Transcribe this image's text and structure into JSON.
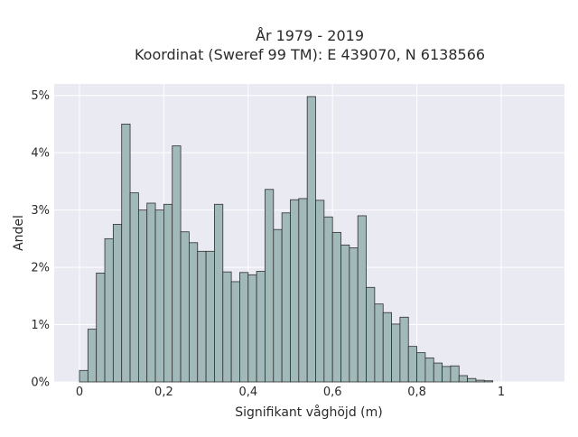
{
  "chart_data": {
    "type": "bar",
    "title_line1": "År 1979 - 2019",
    "title_line2": "Koordinat (Sweref 99 TM): E 439070, N 6138566",
    "xlabel": "Signifikant våghöjd (m)",
    "ylabel": "Andel",
    "xlim": [
      -0.06,
      1.15
    ],
    "ylim": [
      0,
      5.2
    ],
    "x_ticks": [
      {
        "value": 0,
        "label": "0"
      },
      {
        "value": 0.2,
        "label": "0,2"
      },
      {
        "value": 0.4,
        "label": "0,4"
      },
      {
        "value": 0.6,
        "label": "0,6"
      },
      {
        "value": 0.8,
        "label": "0,8"
      },
      {
        "value": 1.0,
        "label": "1"
      }
    ],
    "y_ticks": [
      {
        "value": 0,
        "label": "0%"
      },
      {
        "value": 1,
        "label": "1%"
      },
      {
        "value": 2,
        "label": "2%"
      },
      {
        "value": 3,
        "label": "3%"
      },
      {
        "value": 4,
        "label": "4%"
      },
      {
        "value": 5,
        "label": "5%"
      }
    ],
    "bin_width": 0.02,
    "bin_start": 0.0,
    "values": [
      0.2,
      0.92,
      1.9,
      2.5,
      2.75,
      4.5,
      3.3,
      3.0,
      3.12,
      3.0,
      3.1,
      4.12,
      2.62,
      2.43,
      2.28,
      2.28,
      3.1,
      1.92,
      1.75,
      1.91,
      1.87,
      1.93,
      3.36,
      2.66,
      2.95,
      3.18,
      3.2,
      4.98,
      3.17,
      2.88,
      2.61,
      2.39,
      2.34,
      2.9,
      1.65,
      1.36,
      1.21,
      1.01,
      1.13,
      0.62,
      0.51,
      0.42,
      0.33,
      0.27,
      0.28,
      0.11,
      0.06,
      0.03,
      0.02
    ],
    "colors": {
      "plot_bg": "#eaeaf2",
      "grid": "#ffffff",
      "bar_fill": "#a1b9b9",
      "bar_stroke": "#2f2f2f"
    }
  }
}
